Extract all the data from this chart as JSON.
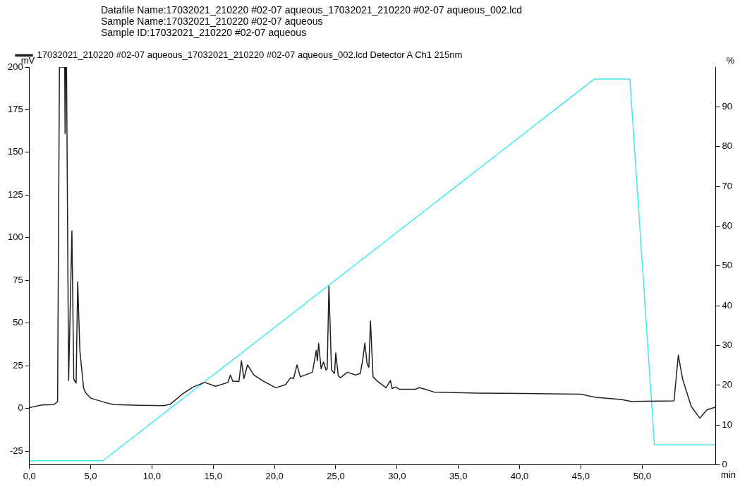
{
  "chart_data": {
    "type": "line",
    "title": "Datafile Name:17032021_210220 #02-07 aqueous_17032021_210220 #02-07 aqueous_002.lcd",
    "subtitle": "Sample Name:17032021_210220 #02-07 aqueous",
    "annotations": [
      "Sample ID:17032021_210220 #02-07 aqueous"
    ],
    "xlabel": "min",
    "ylabel": "mV",
    "y2label": "%",
    "xlim": [
      0,
      56
    ],
    "xticks": [
      {
        "value": 0,
        "label": "0,0"
      },
      {
        "value": 5,
        "label": "5,0"
      },
      {
        "value": 10,
        "label": "10,0"
      },
      {
        "value": 15,
        "label": "15,0"
      },
      {
        "value": 20,
        "label": "20,0"
      },
      {
        "value": 25,
        "label": "25,0"
      },
      {
        "value": 30,
        "label": "30,0"
      },
      {
        "value": 35,
        "label": "35,0"
      },
      {
        "value": 40,
        "label": "40,0"
      },
      {
        "value": 45,
        "label": "45,0"
      },
      {
        "value": 50,
        "label": "50,0"
      }
    ],
    "ylim": [
      -33,
      200
    ],
    "yticks": [
      -25,
      0,
      25,
      50,
      75,
      100,
      125,
      150,
      175,
      200
    ],
    "y2lim": [
      0,
      100
    ],
    "y2ticks": [
      0,
      10,
      20,
      30,
      40,
      50,
      60,
      70,
      80,
      90
    ],
    "grid": false,
    "legend": "top",
    "marker": "none",
    "line_style": "solid",
    "series": [
      {
        "name": "17032021_210220 #02-07 aqueous_17032021_210220 #02-07 aqueous_002.lcd Detector A Ch1 215nm",
        "color": "#202020",
        "x": [
          0,
          1.0,
          2.0,
          2.3,
          2.45,
          2.88,
          2.91,
          2.96,
          3.03,
          3.2,
          3.47,
          3.62,
          3.81,
          3.94,
          4.12,
          4.42,
          4.6,
          5.0,
          6.3,
          6.9,
          9.0,
          11.0,
          11.5,
          12.5,
          13.35,
          14.3,
          15.2,
          16.2,
          16.4,
          16.6,
          17.1,
          17.3,
          17.5,
          17.8,
          18.3,
          19.1,
          20.1,
          20.9,
          21.3,
          21.55,
          21.84,
          22.1,
          23.1,
          23.4,
          23.5,
          23.6,
          23.8,
          24.0,
          24.2,
          24.3,
          24.44,
          24.65,
          24.9,
          25.0,
          25.2,
          25.36,
          25.95,
          26.6,
          27.0,
          27.2,
          27.37,
          27.56,
          27.7,
          27.83,
          28.04,
          28.4,
          29.1,
          29.46,
          29.6,
          29.9,
          30.2,
          31.5,
          31.8,
          32.15,
          33.0,
          36.5,
          40.4,
          45.0,
          46.2,
          48.3,
          49.1,
          52.6,
          52.95,
          53.3,
          54.0,
          54.7,
          55.3,
          56.0
        ],
        "values": [
          0.4,
          2.0,
          2.2,
          4,
          200,
          200,
          161,
          200,
          200,
          16.4,
          104,
          17,
          14.8,
          74.2,
          33.6,
          12,
          9,
          6,
          3.2,
          2.2,
          1.8,
          1.6,
          2.5,
          8.5,
          12.5,
          15.2,
          13,
          15.2,
          19.5,
          15.9,
          15.9,
          27.9,
          17.5,
          25.5,
          19.6,
          15.9,
          12.1,
          13.9,
          17.9,
          17.5,
          25.5,
          18.5,
          21.2,
          33.9,
          27.9,
          38.1,
          23.2,
          27.2,
          22.5,
          23.2,
          71.6,
          22.5,
          20.5,
          32.5,
          19.2,
          17.9,
          21.2,
          19.6,
          20.5,
          28.5,
          38.3,
          25.9,
          24.1,
          51.2,
          18.5,
          15.9,
          12.1,
          16.3,
          11.6,
          12.5,
          11.2,
          11.2,
          12.1,
          11.5,
          9.6,
          8.9,
          8.7,
          8.3,
          6.5,
          5.2,
          4.1,
          4.4,
          31.2,
          17.2,
          1.2,
          -5.7,
          -0.8,
          0.8
        ]
      },
      {
        "color": "#40e8f0",
        "axis": "y2",
        "x": [
          0,
          6.0,
          46.1,
          49.0,
          51.0,
          56.0
        ],
        "values": [
          1,
          1,
          97,
          97,
          5,
          5
        ]
      }
    ]
  }
}
